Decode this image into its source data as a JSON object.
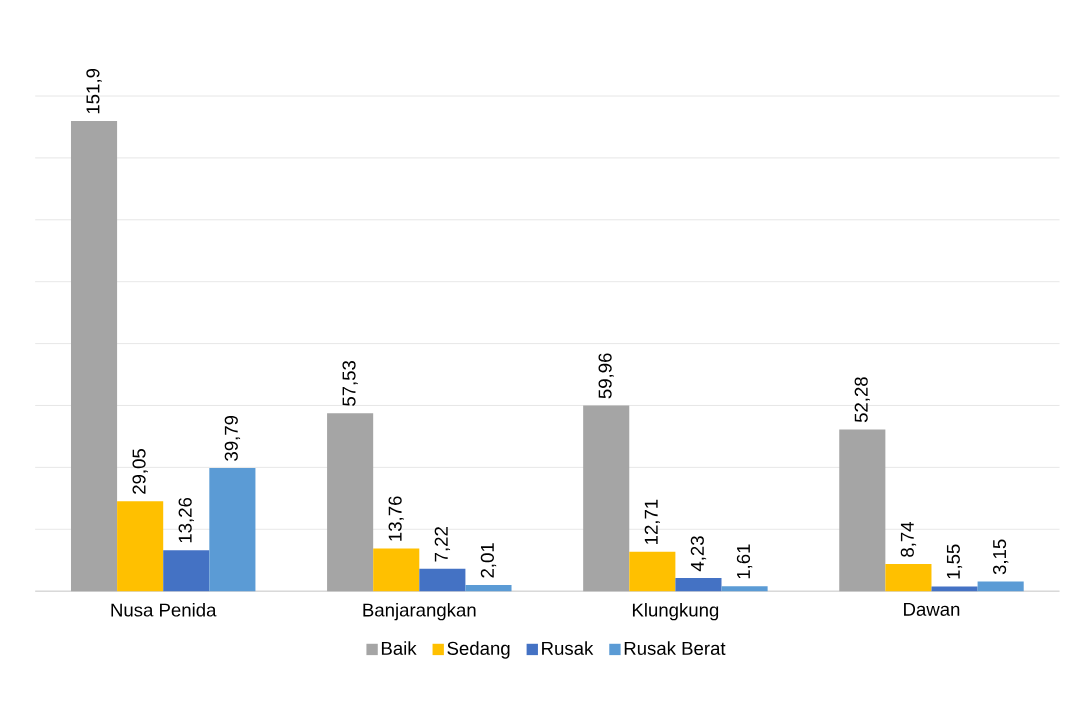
{
  "chart_data": {
    "type": "bar",
    "categories": [
      "Nusa Penida",
      "Banjarangkan",
      "Klungkung",
      "Dawan"
    ],
    "series": [
      {
        "name": "Baik",
        "color": "#a5a5a5",
        "values": [
          151.9,
          57.53,
          59.96,
          52.28
        ],
        "value_labels": [
          "151,9",
          "57,53",
          "59,96",
          "52,28"
        ]
      },
      {
        "name": "Sedang",
        "color": "#ffc000",
        "values": [
          29.05,
          13.76,
          12.71,
          8.74
        ],
        "value_labels": [
          "29,05",
          "13,76",
          "12,71",
          "8,74"
        ]
      },
      {
        "name": "Rusak",
        "color": "#4472c4",
        "values": [
          13.26,
          7.22,
          4.23,
          1.55
        ],
        "value_labels": [
          "13,26",
          "7,22",
          "4,23",
          "1,55"
        ]
      },
      {
        "name": "Rusak Berat",
        "color": "#5b9bd5",
        "values": [
          39.79,
          2.01,
          1.61,
          3.15
        ],
        "value_labels": [
          "39,79",
          "2,01",
          "1,61",
          "3,15"
        ]
      }
    ],
    "ylim": [
      0,
      160
    ],
    "grid": "y",
    "legend": "bottom",
    "tick_labels": "x"
  }
}
